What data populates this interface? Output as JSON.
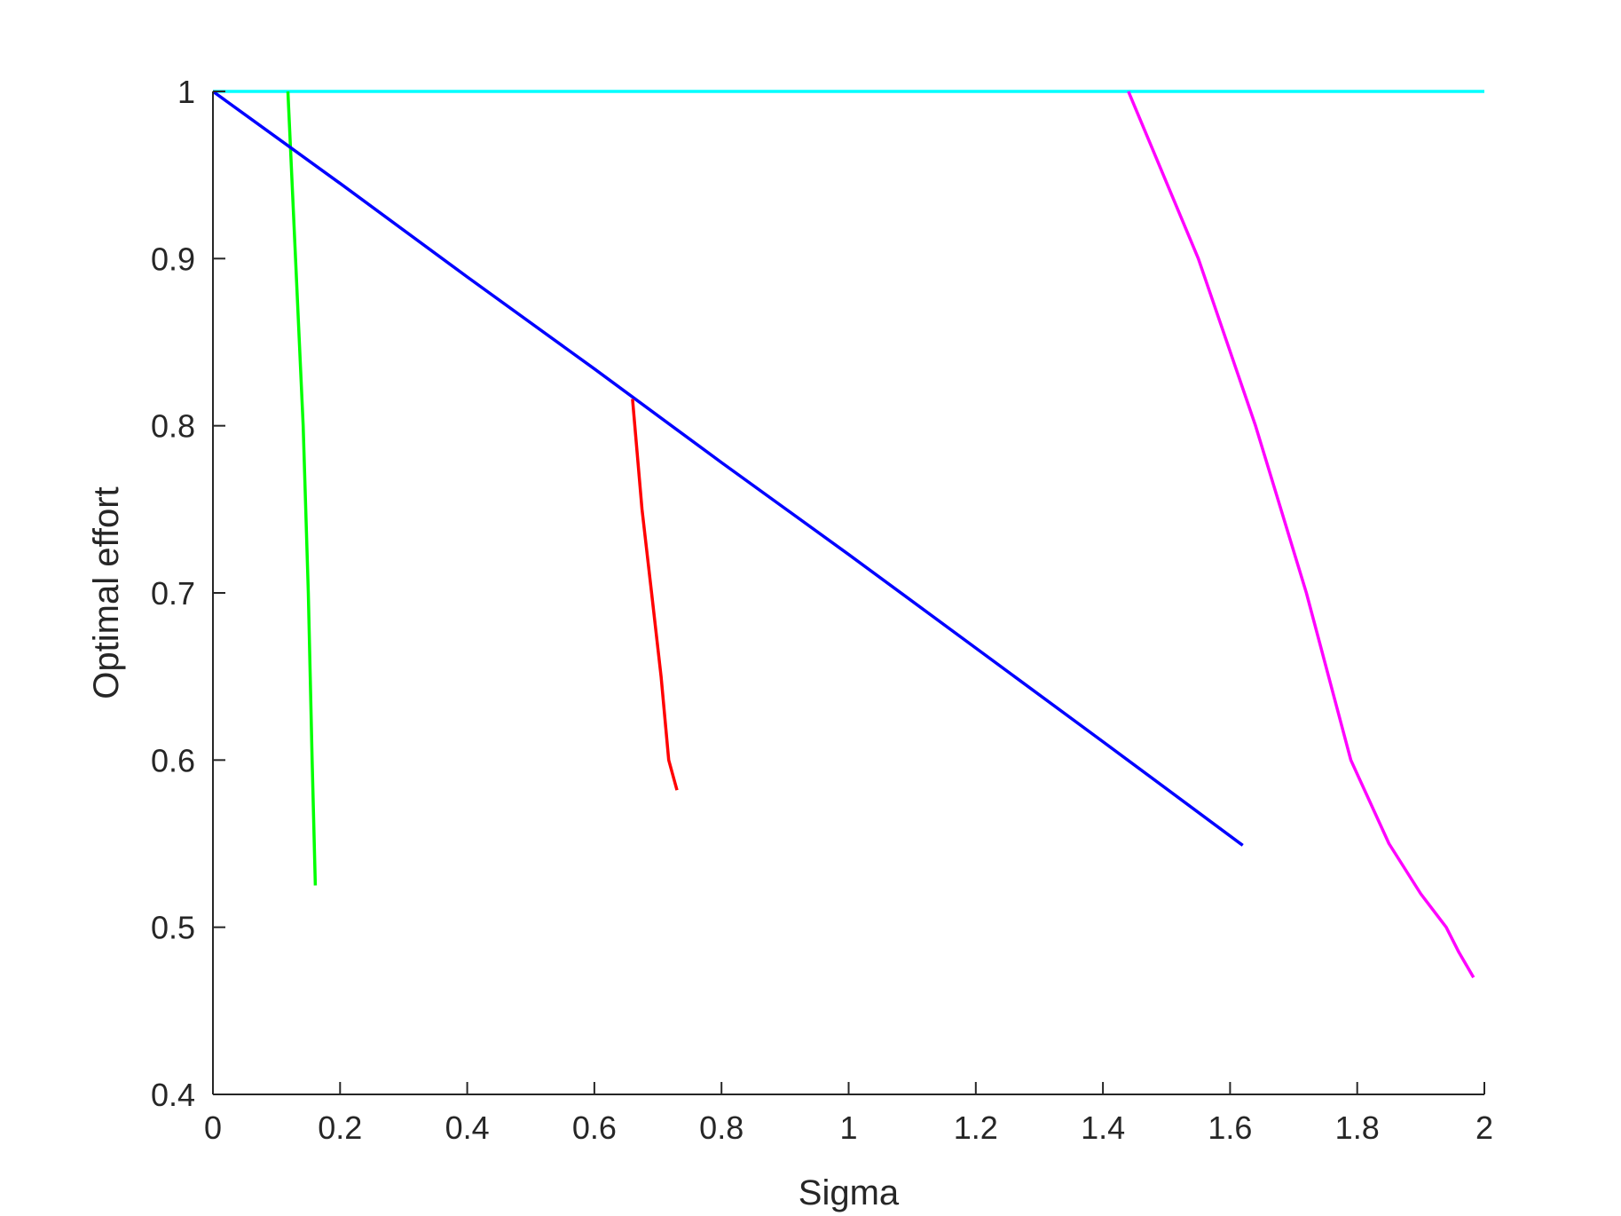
{
  "chart_data": {
    "type": "line",
    "title": "",
    "xlabel": "Sigma",
    "ylabel": "Optimal effort",
    "xlim": [
      0,
      2
    ],
    "ylim": [
      0.4,
      1
    ],
    "xticks": [
      0,
      0.2,
      0.4,
      0.6,
      0.8,
      1,
      1.2,
      1.4,
      1.6,
      1.8,
      2
    ],
    "xtick_labels": [
      "0",
      "0.2",
      "0.4",
      "0.6",
      "0.8",
      "1",
      "1.2",
      "1.4",
      "1.6",
      "1.8",
      "2"
    ],
    "yticks": [
      0.4,
      0.5,
      0.6,
      0.7,
      0.8,
      0.9,
      1
    ],
    "ytick_labels": [
      "0.4",
      "0.5",
      "0.6",
      "0.7",
      "0.8",
      "0.9",
      "1"
    ],
    "grid": false,
    "legend": false,
    "series": [
      {
        "color": "#00ffff",
        "points": [
          [
            0,
            1
          ],
          [
            2,
            1
          ]
        ]
      },
      {
        "color": "#00ff00",
        "points": [
          [
            0.118,
            1
          ],
          [
            0.13,
            0.9
          ],
          [
            0.142,
            0.8
          ],
          [
            0.15,
            0.7
          ],
          [
            0.156,
            0.6
          ],
          [
            0.161,
            0.525
          ]
        ]
      },
      {
        "color": "#0000ff",
        "points": [
          [
            0,
            1
          ],
          [
            0.2,
            0.945
          ],
          [
            0.4,
            0.889
          ],
          [
            0.6,
            0.834
          ],
          [
            0.8,
            0.778
          ],
          [
            1.0,
            0.723
          ],
          [
            1.2,
            0.667
          ],
          [
            1.4,
            0.611
          ],
          [
            1.62,
            0.549
          ]
        ]
      },
      {
        "color": "#ff0000",
        "points": [
          [
            0.66,
            0.816
          ],
          [
            0.675,
            0.75
          ],
          [
            0.69,
            0.7
          ],
          [
            0.705,
            0.65
          ],
          [
            0.717,
            0.6
          ],
          [
            0.73,
            0.582
          ]
        ]
      },
      {
        "color": "#ff00ff",
        "points": [
          [
            1.44,
            1
          ],
          [
            1.55,
            0.9
          ],
          [
            1.64,
            0.8
          ],
          [
            1.72,
            0.7
          ],
          [
            1.79,
            0.6
          ],
          [
            1.85,
            0.55
          ],
          [
            1.9,
            0.52
          ],
          [
            1.94,
            0.5
          ],
          [
            1.96,
            0.485
          ],
          [
            1.983,
            0.47
          ]
        ]
      }
    ]
  }
}
